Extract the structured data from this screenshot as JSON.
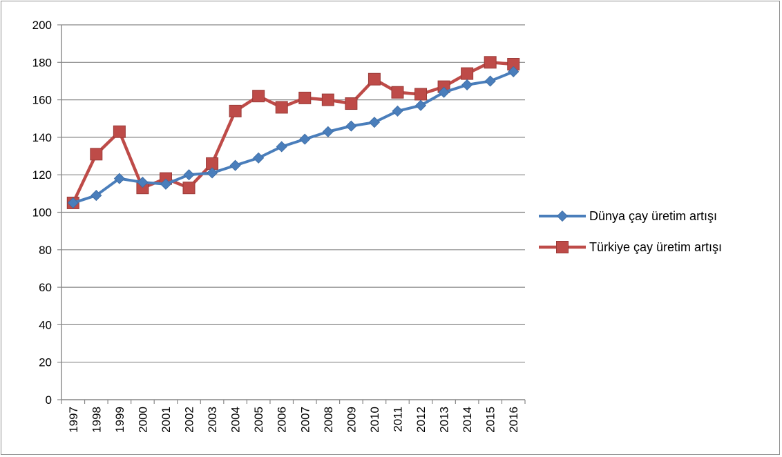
{
  "chart_data": {
    "type": "line",
    "title": "",
    "xlabel": "",
    "ylabel": "",
    "categories": [
      "1997",
      "1998",
      "1999",
      "2000",
      "2001",
      "2002",
      "2003",
      "2004",
      "2005",
      "2006",
      "2007",
      "2008",
      "2009",
      "2010",
      "2011",
      "2012",
      "2013",
      "2014",
      "2015",
      "2016"
    ],
    "ylim": [
      0,
      200
    ],
    "yticks": [
      0,
      20,
      40,
      60,
      80,
      100,
      120,
      140,
      160,
      180,
      200
    ],
    "grid": true,
    "legend_position": "right",
    "series": [
      {
        "name": "Dünya çay üretim artışı",
        "color": "#4a7ebb",
        "marker": "diamond",
        "values": [
          105,
          109,
          118,
          116,
          115,
          120,
          121,
          125,
          129,
          135,
          139,
          143,
          146,
          148,
          154,
          157,
          164,
          168,
          170,
          175
        ]
      },
      {
        "name": "Türkiye çay üretim artışı",
        "color": "#be4b48",
        "marker": "square",
        "values": [
          105,
          131,
          143,
          113,
          118,
          113,
          126,
          154,
          162,
          156,
          161,
          160,
          158,
          171,
          164,
          163,
          167,
          174,
          180,
          179
        ]
      }
    ]
  }
}
